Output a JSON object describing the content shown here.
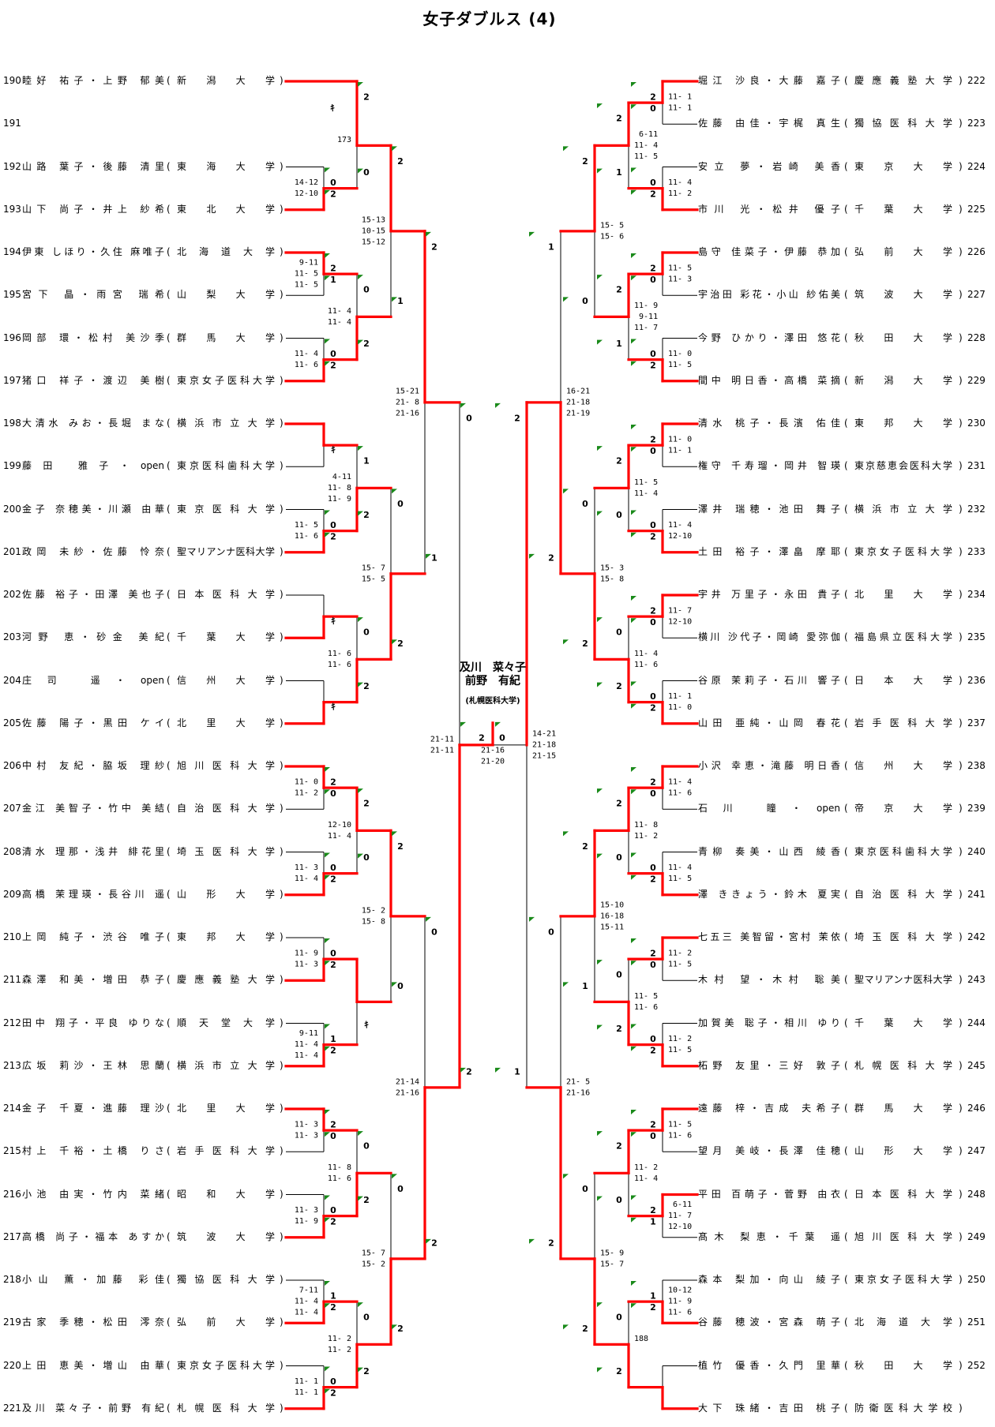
{
  "title": "女子ダブルス (4)",
  "paren": [
    "(",
    ")"
  ],
  "colors": {
    "winner_line": "#ff0000",
    "marker": "#1a8a1a"
  },
  "champion": {
    "line1": "及川　菜々子",
    "line2": "前野　有紀",
    "univ": "(札幌医科大学)"
  },
  "final": {
    "r": [
      "2",
      "0"
    ],
    "g": [
      "21-16",
      "21-20"
    ]
  },
  "left": {
    "entries": [
      {
        "no": "190",
        "name": "睦好 祐子・上野 郁美",
        "univ": "新潟大学"
      },
      {
        "no": "191",
        "name": "",
        "univ": ""
      },
      {
        "no": "192",
        "name": "山路 葉子・後藤 清里",
        "univ": "東海大学"
      },
      {
        "no": "193",
        "name": "山下 尚子・井上 紗希",
        "univ": "東北大学"
      },
      {
        "no": "194",
        "name": "伊東 しほり・久住 麻唯子",
        "univ": "北海道大学"
      },
      {
        "no": "195",
        "name": "宮下 晶・雨宮 瑞希",
        "univ": "山梨大学"
      },
      {
        "no": "196",
        "name": "岡部 環・松村 美沙季",
        "univ": "群馬大学"
      },
      {
        "no": "197",
        "name": "猪口 祥子・渡辺 美樹",
        "univ": "東京女子医科大学"
      },
      {
        "no": "198",
        "name": "大清水 みお・長堀 まな",
        "univ": "横浜市立大学"
      },
      {
        "no": "199",
        "name": "藤田 雅子・open",
        "univ": "東京医科歯科大学"
      },
      {
        "no": "200",
        "name": "金子 奈穂美・川瀬 由華",
        "univ": "東京医科大学"
      },
      {
        "no": "201",
        "name": "政岡 未紗・佐藤 怜奈",
        "univ": "聖マリアンナ医科大学"
      },
      {
        "no": "202",
        "name": "佐藤 裕子・田澤 美也子",
        "univ": "日本医科大学"
      },
      {
        "no": "203",
        "name": "河野 恵・砂金 美紀",
        "univ": "千葉大学"
      },
      {
        "no": "204",
        "name": "庄司 遥・open",
        "univ": "信州大学"
      },
      {
        "no": "205",
        "name": "佐藤 陽子・黒田 ケイ",
        "univ": "北里大学"
      },
      {
        "no": "206",
        "name": "中村 友紀・脇坂 理紗",
        "univ": "旭川医科大学"
      },
      {
        "no": "207",
        "name": "金江 美智子・竹中 美結",
        "univ": "自治医科大学"
      },
      {
        "no": "208",
        "name": "清水 理那・浅井 緋花里",
        "univ": "埼玉医科大学"
      },
      {
        "no": "209",
        "name": "高橋 茉理瑛・長谷川 遥",
        "univ": "山形大学"
      },
      {
        "no": "210",
        "name": "上岡 純子・渋谷 唯子",
        "univ": "東邦大学"
      },
      {
        "no": "211",
        "name": "森澤 和美・増田 恭子",
        "univ": "慶應義塾大学"
      },
      {
        "no": "212",
        "name": "田中 翔子・平良 ゆりな",
        "univ": "順天堂大学"
      },
      {
        "no": "213",
        "name": "広坂 莉沙・王林 思蘭",
        "univ": "横浜市立大学"
      },
      {
        "no": "214",
        "name": "金子 千夏・進藤 理沙",
        "univ": "北里大学"
      },
      {
        "no": "215",
        "name": "村上 千裕・土橋 りさ",
        "univ": "岩手医科大学"
      },
      {
        "no": "216",
        "name": "小池 由実・竹内 菜緒",
        "univ": "昭和大学"
      },
      {
        "no": "217",
        "name": "高橋 尚子・福本 あすか",
        "univ": "筑波大学"
      },
      {
        "no": "218",
        "name": "小山 薫・加藤 彩佳",
        "univ": "獨協医科大学"
      },
      {
        "no": "219",
        "name": "古家 季穂・松田 澪奈",
        "univ": "弘前大学"
      },
      {
        "no": "220",
        "name": "上田 恵美・増山 由華",
        "univ": "東京女子医科大学"
      },
      {
        "no": "221",
        "name": "及川 菜々子・前野 有紀",
        "univ": "札幌医科大学"
      }
    ],
    "rounds": [
      [
        {
          "bye": true
        },
        {
          "r": [
            "0",
            "2"
          ],
          "g": [
            "14-12",
            "12-10"
          ],
          "w": 1
        },
        {
          "r": [
            "2",
            "1"
          ],
          "g": [
            " 9-11",
            "11- 5",
            "11- 5"
          ],
          "w": 0
        },
        {
          "r": [
            "0",
            "2"
          ],
          "g": [
            "11- 4",
            "11- 6"
          ],
          "w": 1
        },
        {
          "mark": "ｷ",
          "w": 0
        },
        {
          "r": [
            "0",
            "2"
          ],
          "g": [
            "11- 5",
            "11- 6"
          ],
          "w": 1
        },
        {
          "mark": "ｷ",
          "w": 1
        },
        {
          "mark": "ｷ",
          "w": 1
        },
        {
          "r": [
            "2",
            "0"
          ],
          "g": [
            "11- 0",
            "11- 2"
          ],
          "w": 0
        },
        {
          "r": [
            "0",
            "2"
          ],
          "g": [
            "11- 3",
            "11- 4"
          ],
          "w": 1
        },
        {
          "r": [
            "0",
            "2"
          ],
          "g": [
            "11- 9",
            "11- 3"
          ],
          "w": 1
        },
        {
          "r": [
            "1",
            "2"
          ],
          "g": [
            " 9-11",
            "11- 4",
            "11- 4"
          ],
          "w": 1
        },
        {
          "r": [
            "2",
            "0"
          ],
          "g": [
            "11- 3",
            "11- 3"
          ],
          "w": 0
        },
        {
          "r": [
            "0",
            "2"
          ],
          "g": [
            "11- 3",
            "11- 9"
          ],
          "w": 1
        },
        {
          "r": [
            "1",
            "2"
          ],
          "g": [
            " 7-11",
            "11- 4",
            "11- 4"
          ],
          "w": 1
        },
        {
          "r": [
            "0",
            "2"
          ],
          "g": [
            "11- 1",
            "11- 1"
          ],
          "w": 1
        }
      ],
      [
        {
          "r": [
            "2",
            "0"
          ],
          "label": "173",
          "mark": "ｷ",
          "w": 0
        },
        {
          "r": [
            "0",
            "2"
          ],
          "g": [
            "11- 4",
            "11- 4"
          ],
          "w": 1
        },
        {
          "r": [
            "1",
            "2"
          ],
          "g": [
            " 4-11",
            "11- 8",
            "11- 9"
          ],
          "w": 1
        },
        {
          "r": [
            "0",
            "2"
          ],
          "g": [
            "11- 6",
            "11- 6"
          ],
          "w": 1
        },
        {
          "r": [
            "2",
            "0"
          ],
          "g": [
            "12-10",
            "11- 4"
          ],
          "w": 0
        },
        {
          "mark": "ｷ",
          "w": 0
        },
        {
          "r": [
            "0",
            "2"
          ],
          "g": [
            "11- 8",
            "11- 6"
          ],
          "w": 1
        },
        {
          "r": [
            "0",
            "2"
          ],
          "g": [
            "11- 2",
            "11- 2"
          ],
          "w": 1
        }
      ],
      [
        {
          "r": [
            "2",
            "1"
          ],
          "g": [
            "15-13",
            "10-15",
            "15-12"
          ],
          "w": 0
        },
        {
          "r": [
            "0",
            "2"
          ],
          "g": [
            "15- 7",
            "15- 5"
          ],
          "w": 1
        },
        {
          "r": [
            "2",
            "0"
          ],
          "g": [
            "15- 2",
            "15- 8"
          ],
          "w": 0
        },
        {
          "r": [
            "0",
            "2"
          ],
          "g": [
            "15- 7",
            "15- 2"
          ],
          "w": 1
        }
      ],
      [
        {
          "r": [
            "2",
            "1"
          ],
          "g": [
            "15-21",
            "21- 8",
            "21-16"
          ],
          "w": 0
        },
        {
          "r": [
            "0",
            "2"
          ],
          "g": [
            "21-14",
            "21-16"
          ],
          "w": 1
        }
      ],
      [
        {
          "r": [
            "0",
            "2"
          ],
          "g": [
            "21-11",
            "21-11"
          ],
          "w": 1
        }
      ]
    ]
  },
  "right": {
    "entries": [
      {
        "no": "222",
        "name": "堀江 沙良・大藤 嘉子",
        "univ": "慶應義塾大学"
      },
      {
        "no": "223",
        "name": "佐藤 由佳・宇梶 真生",
        "univ": "獨協医科大学"
      },
      {
        "no": "224",
        "name": "安立 夢・岩崎 美香",
        "univ": "東京大学"
      },
      {
        "no": "225",
        "name": "市川 光・松井 優子",
        "univ": "千葉大学"
      },
      {
        "no": "226",
        "name": "島守 佳菜子・伊藤 恭加",
        "univ": "弘前大学"
      },
      {
        "no": "227",
        "name": "宇治田 彩花・小山 紗佑美",
        "univ": "筑波大学"
      },
      {
        "no": "228",
        "name": "今野 ひかり・澤田 悠花",
        "univ": "秋田大学"
      },
      {
        "no": "229",
        "name": "間中 明日香・高橋 菜摘",
        "univ": "新潟大学"
      },
      {
        "no": "230",
        "name": "清水 桃子・長濱 佑佳",
        "univ": "東邦大学"
      },
      {
        "no": "231",
        "name": "権守 千寿瑠・岡井 智瑛",
        "univ": "東京慈恵会医科大学"
      },
      {
        "no": "232",
        "name": "澤井 瑞穂・池田 舞子",
        "univ": "横浜市立大学"
      },
      {
        "no": "233",
        "name": "土田 裕子・澤畠 摩耶",
        "univ": "東京女子医科大学"
      },
      {
        "no": "234",
        "name": "宇井 万里子・永田 貴子",
        "univ": "北里大学"
      },
      {
        "no": "235",
        "name": "横川 沙代子・岡崎 愛弥伽",
        "univ": "福島県立医科大学"
      },
      {
        "no": "236",
        "name": "谷原 茉莉子・石川 響子",
        "univ": "日本大学"
      },
      {
        "no": "237",
        "name": "山田 亜純・山岡 春花",
        "univ": "岩手医科大学"
      },
      {
        "no": "238",
        "name": "小沢 幸恵・滝藤 明日香",
        "univ": "信州大学"
      },
      {
        "no": "239",
        "name": "石川 瞳・open",
        "univ": "帝京大学"
      },
      {
        "no": "240",
        "name": "青柳 奏美・山西 綾香",
        "univ": "東京医科歯科大学"
      },
      {
        "no": "241",
        "name": "澤 ききょう・鈴木 夏実",
        "univ": "自治医科大学"
      },
      {
        "no": "242",
        "name": "七五三 美智留・宮村 茉依",
        "univ": "埼玉医科大学"
      },
      {
        "no": "243",
        "name": "木村 望・木村 聡美",
        "univ": "聖マリアンナ医科大学"
      },
      {
        "no": "244",
        "name": "加賀美 聡子・相川 ゆり",
        "univ": "千葉大学"
      },
      {
        "no": "245",
        "name": "柘野 友里・三好 敦子",
        "univ": "札幌医科大学"
      },
      {
        "no": "246",
        "name": "遠藤 梓・吉成 夫希子",
        "univ": "群馬大学"
      },
      {
        "no": "247",
        "name": "望月 美岐・長澤 佳穂",
        "univ": "山形大学"
      },
      {
        "no": "248",
        "name": "平田 百萌子・菅野 由衣",
        "univ": "日本医科大学"
      },
      {
        "no": "249",
        "name": "髙木 梨恵・千葉 遥",
        "univ": "旭川医科大学"
      },
      {
        "no": "250",
        "name": "森本 梨加・向山 綾子",
        "univ": "東京女子医科大学"
      },
      {
        "no": "251",
        "name": "谷藤 穂波・宮森 萌子",
        "univ": "北海道大学"
      },
      {
        "no": "252",
        "name": "植竹 優香・久門 里華",
        "univ": "秋田大学"
      },
      {
        "no": "",
        "name": "大下 珠緒・吉田 桃子",
        "univ": "防衛医科大学校"
      }
    ],
    "rounds": [
      [
        {
          "r": [
            "2",
            "0"
          ],
          "g": [
            "11- 1",
            "11- 1"
          ],
          "w": 0
        },
        {
          "r": [
            "0",
            "2"
          ],
          "g": [
            "11- 4",
            "11- 2"
          ],
          "w": 1
        },
        {
          "r": [
            "2",
            "0"
          ],
          "g": [
            "11- 5",
            "11- 3"
          ],
          "w": 0
        },
        {
          "r": [
            "0",
            "2"
          ],
          "g": [
            "11- 0",
            "11- 5"
          ],
          "w": 1
        },
        {
          "r": [
            "2",
            "0"
          ],
          "g": [
            "11- 0",
            "11- 1"
          ],
          "w": 0
        },
        {
          "r": [
            "0",
            "2"
          ],
          "g": [
            "11- 4",
            "12-10"
          ],
          "w": 1
        },
        {
          "r": [
            "2",
            "0"
          ],
          "g": [
            "11- 7",
            "12-10"
          ],
          "w": 0
        },
        {
          "r": [
            "0",
            "2"
          ],
          "g": [
            "11- 1",
            "11- 0"
          ],
          "w": 1
        },
        {
          "r": [
            "2",
            "0"
          ],
          "g": [
            "11- 4",
            "11- 6"
          ],
          "w": 0
        },
        {
          "r": [
            "0",
            "2"
          ],
          "g": [
            "11- 4",
            "11- 5"
          ],
          "w": 1
        },
        {
          "r": [
            "2",
            "0"
          ],
          "g": [
            "11- 2",
            "11- 5"
          ],
          "w": 0
        },
        {
          "r": [
            "0",
            "2"
          ],
          "g": [
            "11- 2",
            "11- 5"
          ],
          "w": 1
        },
        {
          "r": [
            "2",
            "0"
          ],
          "g": [
            "11- 5",
            "11- 6"
          ],
          "w": 0
        },
        {
          "r": [
            "2",
            "1"
          ],
          "g": [
            " 6-11",
            "11- 7",
            "12-10"
          ],
          "w": 0
        },
        {
          "r": [
            "1",
            "2"
          ],
          "g": [
            "10-12",
            "11- 9",
            "11- 6"
          ],
          "w": 1
        },
        {
          "w": 1
        }
      ],
      [
        {
          "r": [
            "2",
            "1"
          ],
          "g": [
            " 6-11",
            "11- 4",
            "11- 5"
          ],
          "w": 0
        },
        {
          "r": [
            "2",
            "1"
          ],
          "g": [
            "11- 9",
            " 9-11",
            "11- 7"
          ],
          "w": 0
        },
        {
          "r": [
            "2",
            "0"
          ],
          "g": [
            "11- 5",
            "11- 4"
          ],
          "w": 0
        },
        {
          "r": [
            "0",
            "2"
          ],
          "g": [
            "11- 4",
            "11- 6"
          ],
          "w": 1
        },
        {
          "r": [
            "2",
            "0"
          ],
          "g": [
            "11- 8",
            "11- 2"
          ],
          "w": 0
        },
        {
          "r": [
            "0",
            "2"
          ],
          "g": [
            "11- 5",
            "11- 6"
          ],
          "w": 1
        },
        {
          "r": [
            "2",
            "0"
          ],
          "g": [
            "11- 2",
            "11- 4"
          ],
          "w": 0
        },
        {
          "r": [
            "0",
            "2"
          ],
          "label": "188",
          "w": 1
        }
      ],
      [
        {
          "r": [
            "2",
            "0"
          ],
          "g": [
            "15- 5",
            "15- 6"
          ],
          "w": 0
        },
        {
          "r": [
            "0",
            "2"
          ],
          "g": [
            "15- 3",
            "15- 8"
          ],
          "w": 1
        },
        {
          "r": [
            "2",
            "1"
          ],
          "g": [
            "15-10",
            "16-18",
            "15-11"
          ],
          "w": 0
        },
        {
          "r": [
            "0",
            "2"
          ],
          "g": [
            "15- 9",
            "15- 7"
          ],
          "w": 1
        }
      ],
      [
        {
          "r": [
            "1",
            "2"
          ],
          "g": [
            "16-21",
            "21-18",
            "21-19"
          ],
          "w": 1
        },
        {
          "r": [
            "0",
            "2"
          ],
          "g": [
            "21- 5",
            "21-16"
          ],
          "w": 1
        }
      ],
      [
        {
          "r": [
            "2",
            "1"
          ],
          "g": [
            "14-21",
            "21-18",
            "21-15"
          ],
          "w": 0
        }
      ]
    ]
  }
}
